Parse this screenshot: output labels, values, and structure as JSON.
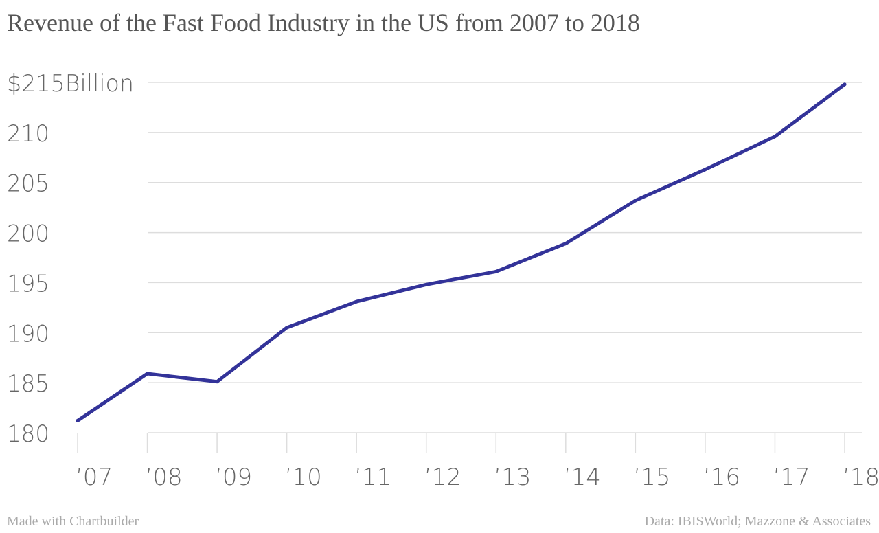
{
  "chart_data": {
    "type": "line",
    "title": "Revenue of the Fast Food Industry in the US from 2007 to 2018",
    "xlabel": "",
    "ylabel": "",
    "categories": [
      "’07",
      "’08",
      "’09",
      "’10",
      "’11",
      "’12",
      "’13",
      "’14",
      "’15",
      "’16",
      "’17",
      "’18"
    ],
    "series": [
      {
        "values": [
          181.2,
          185.9,
          185.1,
          190.5,
          193.1,
          194.8,
          196.1,
          198.9,
          203.2,
          206.3,
          209.6,
          214.8
        ]
      }
    ],
    "ylim": [
      180,
      215
    ],
    "y_ticks": [
      {
        "value": 215,
        "label": "$215Billion"
      },
      {
        "value": 210,
        "label": "210"
      },
      {
        "value": 205,
        "label": "205"
      },
      {
        "value": 200,
        "label": "200"
      },
      {
        "value": 195,
        "label": "195"
      },
      {
        "value": 190,
        "label": "190"
      },
      {
        "value": 185,
        "label": "185"
      },
      {
        "value": 180,
        "label": "180"
      }
    ],
    "grid": true,
    "line_color": "#333399",
    "grid_color": "#dddddd"
  },
  "footer": {
    "credit": "Made with Chartbuilder",
    "source": "Data: IBISWorld; Mazzone & Associates"
  }
}
